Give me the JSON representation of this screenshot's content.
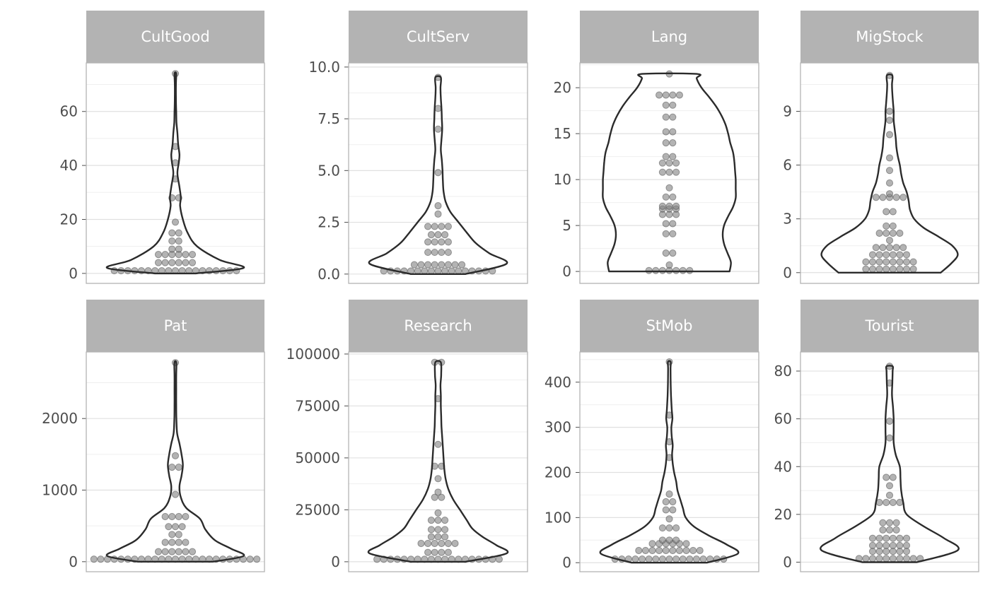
{
  "chart_data": {
    "type": "violin",
    "facet_layout": "2 rows x 4 columns, free y scales",
    "grid": "on",
    "legend": "none",
    "colors": {
      "strip_fill": "#b3b3b3",
      "strip_text": "#ffffff",
      "violin_outline": "#2b2b2b",
      "point_fill": "#808080",
      "grid_major": "#e0e0e0",
      "grid_minor": "#efefef",
      "panel_border": "#b3b3b3",
      "tick_label": "#4d4d4d"
    },
    "panels": [
      {
        "name": "CultGood",
        "ylim": [
          -3.7,
          78
        ],
        "yticks": [
          0,
          20,
          40,
          60
        ],
        "ytick_labels": [
          "0",
          "20",
          "40",
          "60"
        ],
        "points": [
          1,
          1,
          1,
          1,
          1,
          1,
          1,
          1,
          1,
          1,
          1,
          1,
          1,
          1,
          1,
          1,
          1,
          1,
          1,
          4,
          4,
          4,
          4,
          4,
          4,
          7,
          7,
          7,
          7,
          7,
          7,
          9,
          9,
          12,
          12,
          15,
          15,
          19,
          28,
          28,
          35,
          41,
          47,
          74
        ],
        "density": [
          [
            0,
            0.3
          ],
          [
            2,
            1
          ],
          [
            5,
            0.65
          ],
          [
            10,
            0.32
          ],
          [
            15,
            0.18
          ],
          [
            20,
            0.11
          ],
          [
            25,
            0.07
          ],
          [
            28,
            0.08
          ],
          [
            32,
            0.06
          ],
          [
            37,
            0.03
          ],
          [
            41,
            0.05
          ],
          [
            44,
            0.06
          ],
          [
            48,
            0.04
          ],
          [
            52,
            0.03
          ],
          [
            56,
            0.016
          ],
          [
            60,
            0.012
          ],
          [
            65,
            0.008
          ],
          [
            70,
            0.008
          ],
          [
            74,
            0.012
          ]
        ]
      },
      {
        "name": "CultServ",
        "ylim": [
          -0.45,
          10.2
        ],
        "yticks": [
          0,
          2.5,
          5,
          7.5,
          10
        ],
        "ytick_labels": [
          "0.0",
          "2.5",
          "5.0",
          "7.5",
          "10.0"
        ],
        "points": [
          0.15,
          0.15,
          0.15,
          0.15,
          0.15,
          0.15,
          0.15,
          0.15,
          0.15,
          0.15,
          0.15,
          0.15,
          0.15,
          0.15,
          0.15,
          0.15,
          0.15,
          0.45,
          0.45,
          0.45,
          0.45,
          0.45,
          0.45,
          0.45,
          0.45,
          1.05,
          1.05,
          1.05,
          1.05,
          1.55,
          1.55,
          1.55,
          1.55,
          1.9,
          1.9,
          1.9,
          2.3,
          2.3,
          2.3,
          2.3,
          2.9,
          3.3,
          4.9,
          7,
          8,
          9.5
        ],
        "density": [
          [
            0,
            0.4
          ],
          [
            0.5,
            1
          ],
          [
            1,
            0.75
          ],
          [
            1.5,
            0.55
          ],
          [
            2,
            0.42
          ],
          [
            2.5,
            0.3
          ],
          [
            3,
            0.18
          ],
          [
            3.5,
            0.11
          ],
          [
            4,
            0.08
          ],
          [
            4.5,
            0.07
          ],
          [
            5,
            0.065
          ],
          [
            5.5,
            0.055
          ],
          [
            6,
            0.04
          ],
          [
            6.5,
            0.05
          ],
          [
            7,
            0.06
          ],
          [
            7.5,
            0.055
          ],
          [
            8,
            0.05
          ],
          [
            8.5,
            0.04
          ],
          [
            9,
            0.035
          ],
          [
            9.5,
            0.04
          ]
        ]
      },
      {
        "name": "Lang",
        "ylim": [
          -1.3,
          22.7
        ],
        "yticks": [
          0,
          5,
          10,
          15,
          20
        ],
        "ytick_labels": [
          "0",
          "5",
          "10",
          "15",
          "20"
        ],
        "points": [
          0.1,
          0.1,
          0.1,
          0.1,
          0.1,
          0.1,
          0.1,
          0.7,
          2,
          2,
          4.1,
          4.1,
          5.2,
          5.2,
          6.2,
          6.2,
          6.2,
          6.8,
          6.8,
          6.8,
          7.1,
          7.1,
          7.1,
          8.1,
          8.1,
          9.1,
          10.8,
          10.8,
          10.8,
          11.8,
          11.8,
          11.8,
          12.5,
          12.5,
          14,
          14,
          15.2,
          15.2,
          16.8,
          16.8,
          18.1,
          18.1,
          19.2,
          19.2,
          19.2,
          19.2,
          21.5
        ],
        "density": [
          [
            0,
            0.88
          ],
          [
            1,
            0.9
          ],
          [
            2,
            0.85
          ],
          [
            3,
            0.8
          ],
          [
            4,
            0.78
          ],
          [
            5,
            0.8
          ],
          [
            6,
            0.86
          ],
          [
            7,
            0.93
          ],
          [
            8,
            0.97
          ],
          [
            9,
            0.97
          ],
          [
            10,
            0.97
          ],
          [
            11,
            0.96
          ],
          [
            12,
            0.95
          ],
          [
            13,
            0.93
          ],
          [
            14,
            0.89
          ],
          [
            15,
            0.86
          ],
          [
            16,
            0.82
          ],
          [
            17,
            0.76
          ],
          [
            18,
            0.68
          ],
          [
            19,
            0.58
          ],
          [
            20,
            0.47
          ],
          [
            21,
            0.4
          ],
          [
            21.5,
            0.4
          ]
        ]
      },
      {
        "name": "MigStock",
        "ylim": [
          -0.6,
          11.7
        ],
        "yticks": [
          0,
          3,
          6,
          9
        ],
        "ytick_labels": [
          "0",
          "3",
          "6",
          "9"
        ],
        "points": [
          0.2,
          0.2,
          0.2,
          0.2,
          0.2,
          0.2,
          0.2,
          0.2,
          0.6,
          0.6,
          0.6,
          0.6,
          0.6,
          0.6,
          0.6,
          0.6,
          1,
          1,
          1,
          1,
          1,
          1,
          1.4,
          1.4,
          1.4,
          1.4,
          1.4,
          1.8,
          2.2,
          2.2,
          2.2,
          2.2,
          2.6,
          2.6,
          3.4,
          3.4,
          4.2,
          4.2,
          4.2,
          4.2,
          4.2,
          4.4,
          5,
          5.7,
          6.4,
          7.7,
          8.5,
          9,
          11
        ],
        "density": [
          [
            0,
            0.75
          ],
          [
            0.5,
            0.9
          ],
          [
            1,
            1
          ],
          [
            1.5,
            0.92
          ],
          [
            2,
            0.72
          ],
          [
            2.5,
            0.5
          ],
          [
            3,
            0.36
          ],
          [
            3.5,
            0.3
          ],
          [
            4,
            0.28
          ],
          [
            4.5,
            0.25
          ],
          [
            5,
            0.2
          ],
          [
            5.5,
            0.17
          ],
          [
            6,
            0.15
          ],
          [
            6.5,
            0.12
          ],
          [
            7,
            0.1
          ],
          [
            7.5,
            0.09
          ],
          [
            8,
            0.075
          ],
          [
            8.5,
            0.06
          ],
          [
            9,
            0.06
          ],
          [
            9.5,
            0.05
          ],
          [
            10,
            0.04
          ],
          [
            10.5,
            0.035
          ],
          [
            11,
            0.04
          ]
        ]
      },
      {
        "name": "Pat",
        "ylim": [
          -140,
          2930
        ],
        "yticks": [
          0,
          1000,
          2000
        ],
        "ytick_labels": [
          "0",
          "1000",
          "2000"
        ],
        "points": [
          35,
          35,
          35,
          35,
          35,
          35,
          35,
          35,
          35,
          35,
          35,
          35,
          35,
          35,
          35,
          35,
          35,
          35,
          35,
          35,
          35,
          35,
          35,
          35,
          35,
          140,
          140,
          140,
          140,
          140,
          140,
          270,
          270,
          270,
          270,
          380,
          380,
          490,
          490,
          490,
          630,
          630,
          630,
          630,
          940,
          1320,
          1320,
          1480,
          2780
        ],
        "density": [
          [
            0,
            0.55
          ],
          [
            80,
            1
          ],
          [
            180,
            0.82
          ],
          [
            300,
            0.58
          ],
          [
            450,
            0.44
          ],
          [
            600,
            0.36
          ],
          [
            750,
            0.16
          ],
          [
            900,
            0.08
          ],
          [
            1050,
            0.06
          ],
          [
            1200,
            0.09
          ],
          [
            1350,
            0.11
          ],
          [
            1500,
            0.09
          ],
          [
            1650,
            0.06
          ],
          [
            1800,
            0.025
          ],
          [
            2000,
            0.015
          ],
          [
            2200,
            0.012
          ],
          [
            2400,
            0.012
          ],
          [
            2600,
            0.012
          ],
          [
            2780,
            0.014
          ]
        ]
      },
      {
        "name": "Research",
        "ylim": [
          -4800,
          101000
        ],
        "yticks": [
          0,
          25000,
          50000,
          75000,
          100000
        ],
        "ytick_labels": [
          "0",
          "25000",
          "50000",
          "75000",
          "100000"
        ],
        "points": [
          1200,
          1200,
          1200,
          1200,
          1200,
          1200,
          1200,
          1200,
          1200,
          1200,
          1200,
          1200,
          1200,
          1200,
          1200,
          1200,
          1200,
          1200,
          1200,
          4500,
          4500,
          4500,
          4500,
          8800,
          8800,
          8800,
          8800,
          8800,
          8800,
          12000,
          12000,
          12000,
          15500,
          15500,
          15500,
          20000,
          20000,
          20000,
          23500,
          31000,
          31000,
          33500,
          40000,
          46000,
          46000,
          56500,
          78500,
          96000,
          96000
        ],
        "density": [
          [
            0,
            0.4
          ],
          [
            4000,
            1
          ],
          [
            8000,
            0.85
          ],
          [
            12000,
            0.65
          ],
          [
            16000,
            0.5
          ],
          [
            20000,
            0.42
          ],
          [
            25000,
            0.32
          ],
          [
            30000,
            0.22
          ],
          [
            35000,
            0.15
          ],
          [
            40000,
            0.11
          ],
          [
            45000,
            0.09
          ],
          [
            50000,
            0.08
          ],
          [
            55000,
            0.07
          ],
          [
            60000,
            0.06
          ],
          [
            65000,
            0.05
          ],
          [
            70000,
            0.045
          ],
          [
            75000,
            0.04
          ],
          [
            80000,
            0.04
          ],
          [
            85000,
            0.035
          ],
          [
            90000,
            0.045
          ],
          [
            96000,
            0.04
          ]
        ]
      },
      {
        "name": "StMob",
        "ylim": [
          -20,
          467
        ],
        "yticks": [
          0,
          100,
          200,
          300,
          400
        ],
        "ytick_labels": [
          "0",
          "100",
          "200",
          "300",
          "400"
        ],
        "points": [
          8,
          8,
          8,
          8,
          8,
          8,
          8,
          8,
          8,
          8,
          8,
          8,
          8,
          8,
          8,
          8,
          8,
          27,
          27,
          27,
          27,
          27,
          27,
          27,
          27,
          27,
          27,
          42,
          42,
          42,
          42,
          42,
          42,
          50,
          50,
          50,
          77,
          77,
          77,
          97,
          117,
          117,
          135,
          135,
          152,
          233,
          268,
          327,
          445
        ],
        "density": [
          [
            0,
            0.55
          ],
          [
            20,
            1
          ],
          [
            40,
            0.84
          ],
          [
            60,
            0.58
          ],
          [
            80,
            0.36
          ],
          [
            100,
            0.24
          ],
          [
            120,
            0.2
          ],
          [
            140,
            0.16
          ],
          [
            160,
            0.12
          ],
          [
            180,
            0.1
          ],
          [
            200,
            0.07
          ],
          [
            220,
            0.05
          ],
          [
            240,
            0.04
          ],
          [
            260,
            0.05
          ],
          [
            280,
            0.035
          ],
          [
            300,
            0.03
          ],
          [
            320,
            0.045
          ],
          [
            340,
            0.035
          ],
          [
            370,
            0.025
          ],
          [
            400,
            0.02
          ],
          [
            430,
            0.018
          ],
          [
            445,
            0.02
          ]
        ]
      },
      {
        "name": "Tourist",
        "ylim": [
          -4,
          88
        ],
        "yticks": [
          0,
          20,
          40,
          60,
          80
        ],
        "ytick_labels": [
          "0",
          "20",
          "40",
          "60",
          "80"
        ],
        "points": [
          1.5,
          1.5,
          1.5,
          1.5,
          1.5,
          1.5,
          1.5,
          1.5,
          1.5,
          1.5,
          4.5,
          4.5,
          4.5,
          4.5,
          4.5,
          4.5,
          7,
          7,
          7,
          7,
          7,
          7,
          10,
          10,
          10,
          10,
          10,
          10,
          13.5,
          13.5,
          13.5,
          16.5,
          16.5,
          16.5,
          25,
          25,
          25,
          25,
          28,
          32,
          35.5,
          35.5,
          52,
          59,
          75,
          82
        ],
        "density": [
          [
            0,
            0.4
          ],
          [
            5,
            1
          ],
          [
            10,
            0.8
          ],
          [
            15,
            0.5
          ],
          [
            20,
            0.25
          ],
          [
            25,
            0.2
          ],
          [
            30,
            0.17
          ],
          [
            35,
            0.16
          ],
          [
            40,
            0.15
          ],
          [
            45,
            0.09
          ],
          [
            50,
            0.06
          ],
          [
            55,
            0.06
          ],
          [
            60,
            0.06
          ],
          [
            65,
            0.05
          ],
          [
            70,
            0.035
          ],
          [
            75,
            0.04
          ],
          [
            80,
            0.045
          ],
          [
            82,
            0.045
          ]
        ]
      }
    ]
  }
}
